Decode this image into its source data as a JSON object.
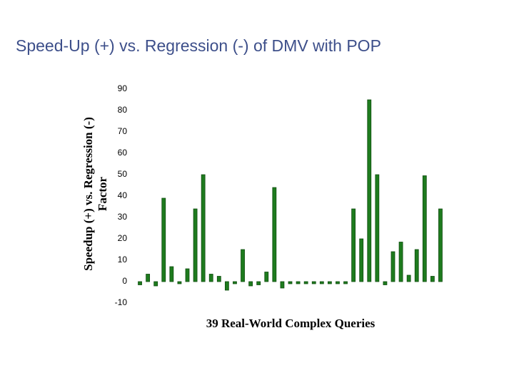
{
  "chart_data": {
    "type": "bar",
    "title": "Speed-Up (+) vs. Regression (-) of DMV with POP",
    "y_label": [
      "Speedup (+) vs. Regression (-)",
      "Factor"
    ],
    "x_label": "39 Real-World Complex Queries",
    "color": "#1e7b1e",
    "ylim": [
      -10,
      90
    ],
    "yticks": [
      -10,
      0,
      10,
      20,
      30,
      40,
      50,
      60,
      70,
      80,
      90
    ],
    "grid": false,
    "values": [
      -1.5,
      3.5,
      -2,
      39,
      7,
      -1,
      6,
      34,
      50,
      3.5,
      2.5,
      -4,
      -1,
      15,
      -2,
      -1.5,
      4.5,
      44,
      -3,
      -1,
      -1,
      -1,
      -1,
      -1,
      -1,
      -1,
      -1,
      34,
      20,
      85,
      50,
      -1.5,
      14,
      18.5,
      3,
      15,
      49.5,
      2.5,
      34
    ]
  }
}
